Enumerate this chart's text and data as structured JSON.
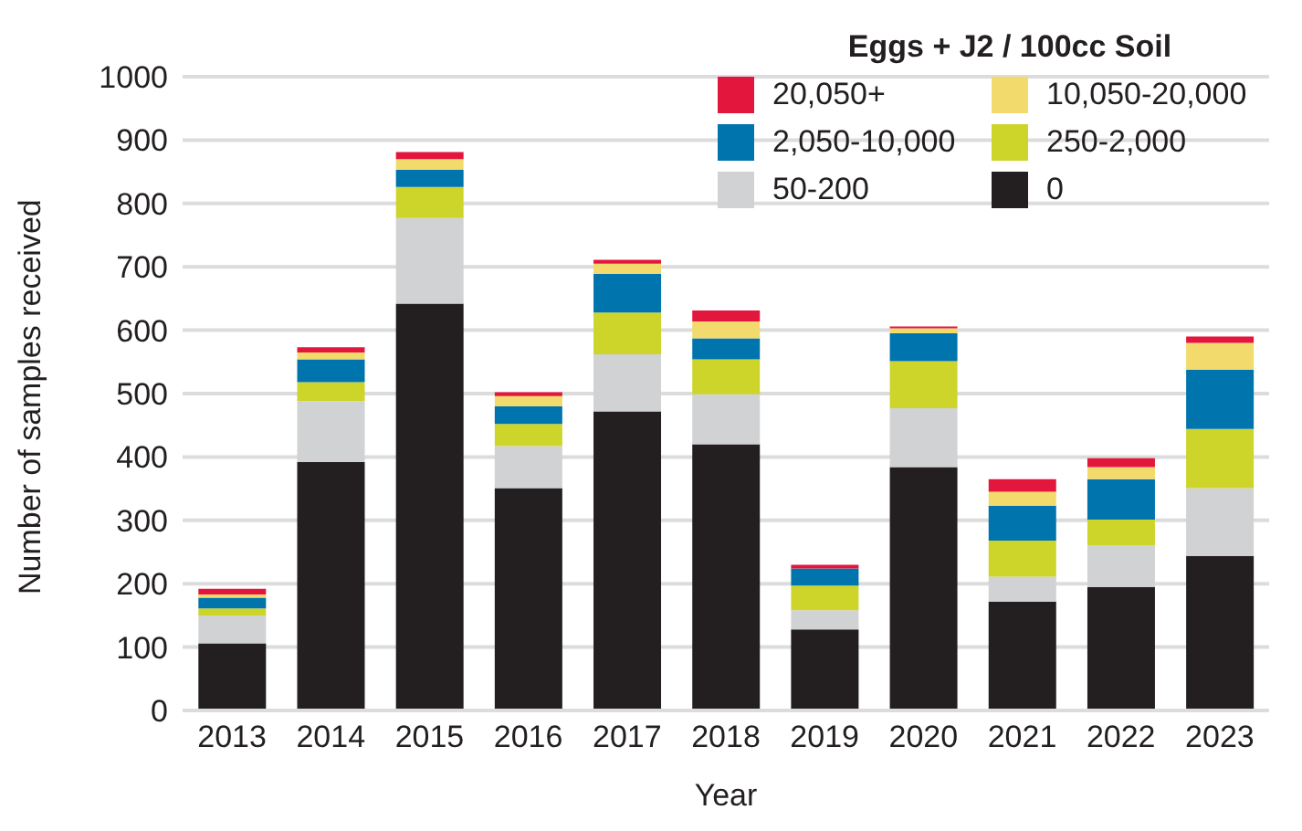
{
  "chart_data": {
    "type": "bar",
    "stacked": true,
    "xlabel": "Year",
    "ylabel": "Number of samples received",
    "legend_title": "Eggs + J2 / 100cc Soil",
    "legend": "top right",
    "grid": "y",
    "categories": [
      "2013",
      "2014",
      "2015",
      "2016",
      "2017",
      "2018",
      "2019",
      "2020",
      "2021",
      "2022",
      "2023"
    ],
    "ylim": [
      0,
      1000
    ],
    "yticks": [
      0,
      100,
      200,
      300,
      400,
      500,
      600,
      700,
      800,
      900,
      1000
    ],
    "series": [
      {
        "name": "0",
        "color": "#231f20",
        "values": [
          106,
          392,
          642,
          351,
          472,
          420,
          128,
          384,
          172,
          195,
          244
        ]
      },
      {
        "name": "50-200",
        "color": "#d1d2d4",
        "values": [
          44,
          96,
          135,
          66,
          90,
          79,
          30,
          93,
          39,
          65,
          107
        ]
      },
      {
        "name": "250-2,000",
        "color": "#cdd42a",
        "values": [
          11,
          30,
          49,
          35,
          66,
          55,
          39,
          74,
          57,
          41,
          93
        ]
      },
      {
        "name": "2,050-10,000",
        "color": "#0074ad",
        "values": [
          17,
          36,
          27,
          28,
          61,
          33,
          27,
          44,
          55,
          64,
          94
        ]
      },
      {
        "name": "10,050-20,000",
        "color": "#f2da6d",
        "values": [
          5,
          11,
          17,
          16,
          16,
          27,
          0,
          8,
          22,
          19,
          42
        ]
      },
      {
        "name": "20,050+",
        "color": "#e3173e",
        "values": [
          9,
          8,
          11,
          6,
          6,
          17,
          6,
          3,
          20,
          14,
          10
        ]
      }
    ]
  }
}
